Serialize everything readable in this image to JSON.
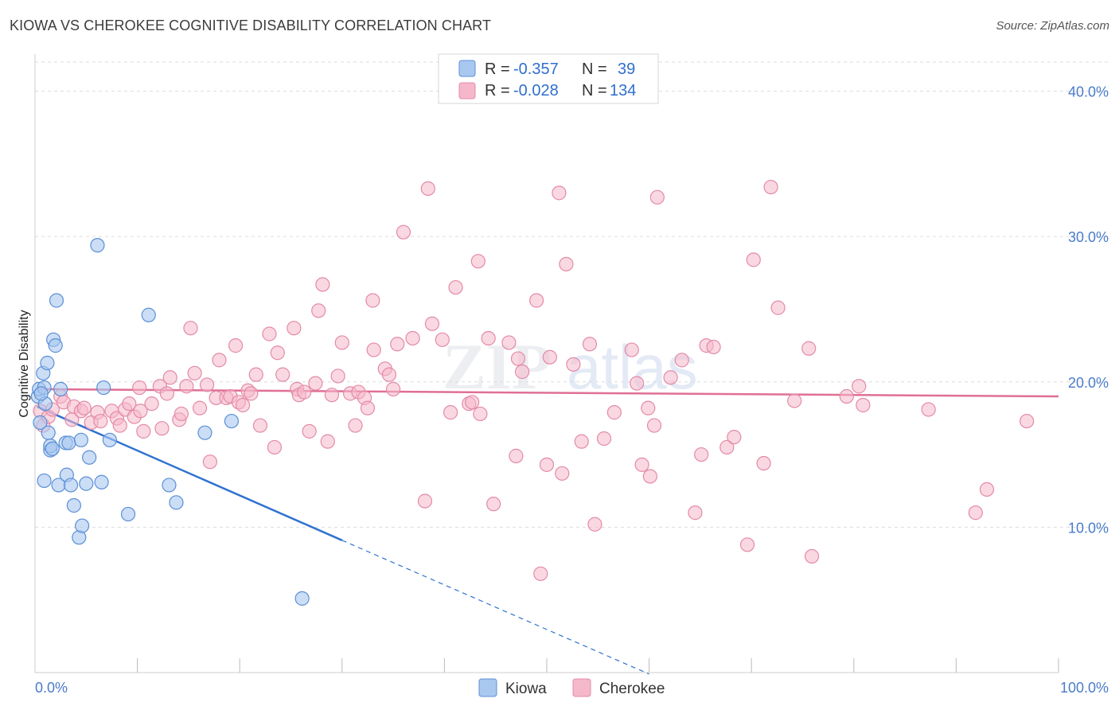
{
  "title": "KIOWA VS CHEROKEE COGNITIVE DISABILITY CORRELATION CHART",
  "source": "Source: ZipAtlas.com",
  "colors": {
    "kiowa_fill": "#a9c8f0",
    "kiowa_stroke": "#5b8fd6",
    "kiowa_line": "#2f72d0",
    "cherokee_fill": "#f5b8cb",
    "cherokee_stroke": "#e38aa8",
    "cherokee_line": "#e06f95",
    "tick_text": "#4a7cc9"
  },
  "legend": {
    "kiowa_r_label": "R =",
    "kiowa_r_value": "-0.357",
    "kiowa_n_label": "N =",
    "kiowa_n_value": "39",
    "cherokee_r_label": "R =",
    "cherokee_r_value": "-0.028",
    "cherokee_n_label": "N =",
    "cherokee_n_value": "134"
  },
  "chart_data": {
    "type": "scatter",
    "title": "KIOWA VS CHEROKEE COGNITIVE DISABILITY CORRELATION CHART",
    "xlabel": "",
    "ylabel": "Cognitive Disability",
    "xlim": [
      0,
      100
    ],
    "ylim": [
      0,
      42
    ],
    "x_tick_labels": [
      "0.0%",
      "100.0%"
    ],
    "y_ticks": [
      10,
      20,
      30,
      40
    ],
    "y_tick_labels": [
      "10.0%",
      "20.0%",
      "30.0%",
      "40.0%"
    ],
    "grid": true,
    "legend_position": "top-center",
    "watermark": "ZIPatlas",
    "series": [
      {
        "name": "Kiowa",
        "trend": {
          "x0": 0.2,
          "y0": 18.3,
          "x1": 30,
          "y1": 9.1,
          "dashed_to_x": 60,
          "dashed_to_y": -0.1
        },
        "points": [
          [
            0.3,
            19.0
          ],
          [
            0.4,
            19.5
          ],
          [
            0.5,
            17.2
          ],
          [
            0.8,
            20.6
          ],
          [
            0.9,
            19.6
          ],
          [
            0.9,
            13.2
          ],
          [
            1.2,
            21.3
          ],
          [
            1.3,
            16.5
          ],
          [
            1.5,
            15.3
          ],
          [
            1.5,
            15.6
          ],
          [
            1.7,
            15.4
          ],
          [
            1.8,
            22.9
          ],
          [
            2.0,
            22.5
          ],
          [
            2.1,
            25.6
          ],
          [
            2.3,
            12.9
          ],
          [
            2.5,
            19.5
          ],
          [
            3.0,
            15.8
          ],
          [
            3.1,
            13.6
          ],
          [
            3.3,
            15.8
          ],
          [
            3.5,
            12.9
          ],
          [
            3.8,
            11.5
          ],
          [
            4.3,
            9.3
          ],
          [
            4.5,
            16.0
          ],
          [
            4.6,
            10.1
          ],
          [
            5.0,
            13.0
          ],
          [
            5.3,
            14.8
          ],
          [
            6.1,
            29.4
          ],
          [
            6.5,
            13.1
          ],
          [
            6.7,
            19.6
          ],
          [
            7.3,
            16.0
          ],
          [
            9.1,
            10.9
          ],
          [
            11.1,
            24.6
          ],
          [
            13.1,
            12.9
          ],
          [
            13.8,
            11.7
          ],
          [
            16.6,
            16.5
          ],
          [
            19.2,
            17.3
          ],
          [
            26.1,
            5.1
          ],
          [
            1.0,
            18.5
          ],
          [
            0.6,
            19.2
          ]
        ]
      },
      {
        "name": "Cherokee",
        "trend": {
          "x0": 0.2,
          "y0": 19.5,
          "x1": 100,
          "y1": 19.0
        },
        "points": [
          [
            0.5,
            18.0
          ],
          [
            0.8,
            17.0
          ],
          [
            1.3,
            17.6
          ],
          [
            1.7,
            18.1
          ],
          [
            2.5,
            19.0
          ],
          [
            2.8,
            18.6
          ],
          [
            3.6,
            17.4
          ],
          [
            3.8,
            18.3
          ],
          [
            4.5,
            18.0
          ],
          [
            4.8,
            18.2
          ],
          [
            5.5,
            17.2
          ],
          [
            6.1,
            17.9
          ],
          [
            6.4,
            17.3
          ],
          [
            7.5,
            18.0
          ],
          [
            8.0,
            17.5
          ],
          [
            8.3,
            17.0
          ],
          [
            8.8,
            18.1
          ],
          [
            9.2,
            18.5
          ],
          [
            9.7,
            17.6
          ],
          [
            10.2,
            19.6
          ],
          [
            10.3,
            18.0
          ],
          [
            10.6,
            16.6
          ],
          [
            11.4,
            18.5
          ],
          [
            12.2,
            19.7
          ],
          [
            12.4,
            16.8
          ],
          [
            12.9,
            19.2
          ],
          [
            13.2,
            20.3
          ],
          [
            14.1,
            17.4
          ],
          [
            14.3,
            17.8
          ],
          [
            14.8,
            19.7
          ],
          [
            15.2,
            23.7
          ],
          [
            15.6,
            20.6
          ],
          [
            16.1,
            18.2
          ],
          [
            16.8,
            19.8
          ],
          [
            17.1,
            14.5
          ],
          [
            17.7,
            18.9
          ],
          [
            18.0,
            21.5
          ],
          [
            18.7,
            18.9
          ],
          [
            19.1,
            19.0
          ],
          [
            19.6,
            22.5
          ],
          [
            19.9,
            18.6
          ],
          [
            20.3,
            18.4
          ],
          [
            20.8,
            19.4
          ],
          [
            21.1,
            19.2
          ],
          [
            21.6,
            20.5
          ],
          [
            22.0,
            17.0
          ],
          [
            22.9,
            23.3
          ],
          [
            23.4,
            15.5
          ],
          [
            23.7,
            22.0
          ],
          [
            24.2,
            20.5
          ],
          [
            25.3,
            23.7
          ],
          [
            25.6,
            19.5
          ],
          [
            25.8,
            19.1
          ],
          [
            26.3,
            19.3
          ],
          [
            26.8,
            16.6
          ],
          [
            27.4,
            19.9
          ],
          [
            27.7,
            24.9
          ],
          [
            28.1,
            26.7
          ],
          [
            28.6,
            15.9
          ],
          [
            29.0,
            19.1
          ],
          [
            29.6,
            20.4
          ],
          [
            30.0,
            22.7
          ],
          [
            30.8,
            19.2
          ],
          [
            31.3,
            17.0
          ],
          [
            31.6,
            19.3
          ],
          [
            32.2,
            18.9
          ],
          [
            32.5,
            18.2
          ],
          [
            33.0,
            25.6
          ],
          [
            33.1,
            22.2
          ],
          [
            34.2,
            20.9
          ],
          [
            34.6,
            20.5
          ],
          [
            35.0,
            19.5
          ],
          [
            35.4,
            22.6
          ],
          [
            36.0,
            30.3
          ],
          [
            36.9,
            23.0
          ],
          [
            38.1,
            11.8
          ],
          [
            38.4,
            33.3
          ],
          [
            38.8,
            24.0
          ],
          [
            39.8,
            22.9
          ],
          [
            40.6,
            17.9
          ],
          [
            41.1,
            26.5
          ],
          [
            42.4,
            18.5
          ],
          [
            42.7,
            18.6
          ],
          [
            43.3,
            28.3
          ],
          [
            43.5,
            17.8
          ],
          [
            44.3,
            23.0
          ],
          [
            44.8,
            11.6
          ],
          [
            46.3,
            22.7
          ],
          [
            47.0,
            14.9
          ],
          [
            47.2,
            21.6
          ],
          [
            47.6,
            20.7
          ],
          [
            49.0,
            25.6
          ],
          [
            49.4,
            6.8
          ],
          [
            50.0,
            14.3
          ],
          [
            50.3,
            21.7
          ],
          [
            51.2,
            33.0
          ],
          [
            51.5,
            13.7
          ],
          [
            51.9,
            28.1
          ],
          [
            52.6,
            21.2
          ],
          [
            53.4,
            15.9
          ],
          [
            54.2,
            22.6
          ],
          [
            54.7,
            10.2
          ],
          [
            55.6,
            16.1
          ],
          [
            56.6,
            17.9
          ],
          [
            58.3,
            22.2
          ],
          [
            58.8,
            19.9
          ],
          [
            59.3,
            14.3
          ],
          [
            59.9,
            18.2
          ],
          [
            60.1,
            13.5
          ],
          [
            60.5,
            17.0
          ],
          [
            60.8,
            32.7
          ],
          [
            62.1,
            20.3
          ],
          [
            63.2,
            21.5
          ],
          [
            64.5,
            11.0
          ],
          [
            65.1,
            15.0
          ],
          [
            65.6,
            22.5
          ],
          [
            66.3,
            22.4
          ],
          [
            67.6,
            15.5
          ],
          [
            68.3,
            16.2
          ],
          [
            69.6,
            8.8
          ],
          [
            70.2,
            28.4
          ],
          [
            71.2,
            14.4
          ],
          [
            71.9,
            33.4
          ],
          [
            72.6,
            25.1
          ],
          [
            74.2,
            18.7
          ],
          [
            75.6,
            22.3
          ],
          [
            75.9,
            8.0
          ],
          [
            79.3,
            19.0
          ],
          [
            80.5,
            19.7
          ],
          [
            80.9,
            18.4
          ],
          [
            87.3,
            18.1
          ],
          [
            91.9,
            11.0
          ],
          [
            93.0,
            12.6
          ],
          [
            96.9,
            17.3
          ]
        ]
      }
    ]
  },
  "bottom_legend": {
    "kiowa_label": "Kiowa",
    "cherokee_label": "Cherokee"
  }
}
